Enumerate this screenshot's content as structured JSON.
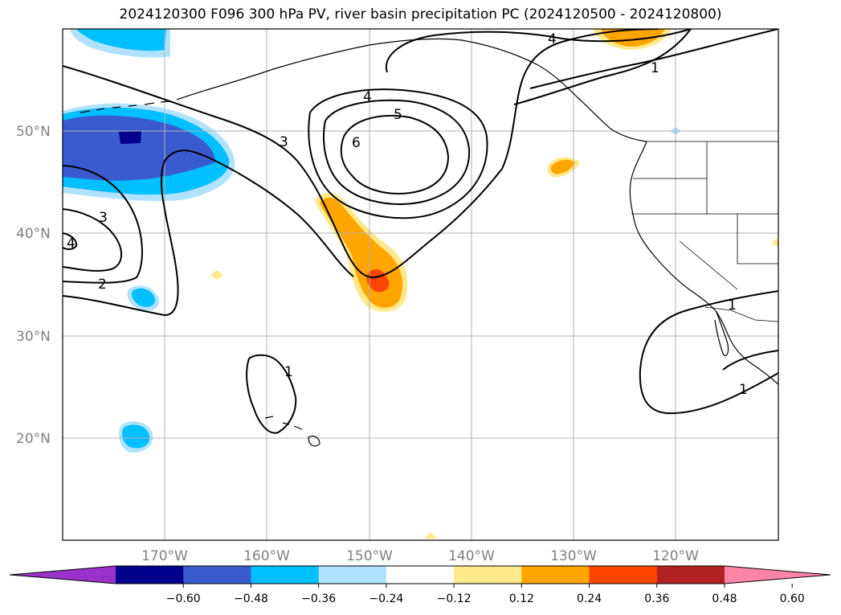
{
  "title": "2024120300 F096 300 hPa PV, river basin precipitation PC (2024120500 - 2024120800)",
  "map": {
    "lat_labels": [
      "50°N",
      "40°N",
      "30°N",
      "20°N"
    ],
    "lon_labels": [
      "170°W",
      "160°W",
      "150°W",
      "140°W",
      "130°W",
      "120°W"
    ],
    "contour_labels": [
      "4",
      "1",
      "3",
      "4",
      "5",
      "6",
      "3",
      "4",
      "2",
      "1",
      "1",
      "1"
    ]
  },
  "colorbar": {
    "colors": [
      "#9932cc",
      "#00008b",
      "#3a5bd0",
      "#00bfff",
      "#b0e2ff",
      "#ffffff",
      "#ffe98a",
      "#ffa500",
      "#ff4500",
      "#b22222",
      "#ff85a8"
    ],
    "tick_labels": [
      "−0.60",
      "−0.48",
      "−0.36",
      "−0.24",
      "−0.12",
      "0.12",
      "0.24",
      "0.36",
      "0.48",
      "0.60"
    ]
  }
}
